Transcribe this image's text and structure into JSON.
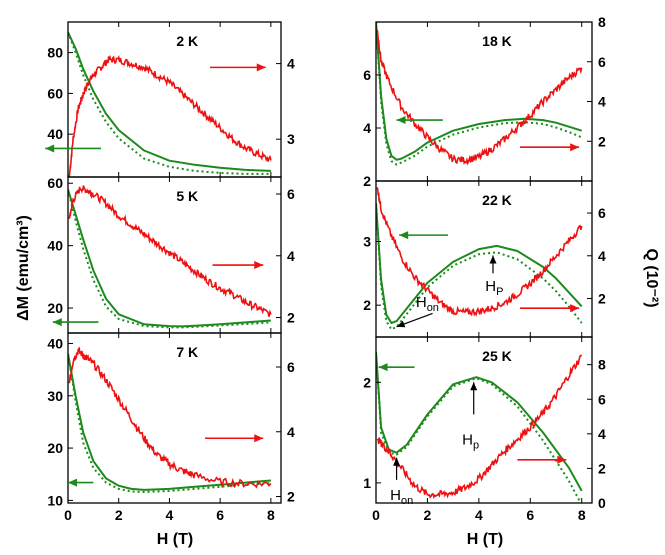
{
  "figure": {
    "y_left_label": "ΔM (emu/cm³)",
    "y_right_label": "Q (10⁻²)",
    "x_label": "H (T)"
  },
  "colors": {
    "green": "#1c8a1c",
    "red": "#ee1111"
  },
  "chart_data": [
    {
      "type": "line",
      "title": "2 K",
      "xlim": [
        0,
        8.4
      ],
      "xticks": [
        0,
        2,
        4,
        6,
        8
      ],
      "show_xticks": false,
      "left_ylim": [
        19,
        95
      ],
      "left_yticks": [
        40,
        60,
        80
      ],
      "right_ylim": [
        2.5,
        4.55
      ],
      "right_yticks": [
        3,
        4
      ],
      "series": [
        {
          "axis": "left",
          "style": "solid",
          "x": [
            0,
            0.3,
            0.6,
            1,
            1.5,
            2,
            3,
            4,
            5,
            6,
            7,
            8
          ],
          "values": [
            90,
            82,
            72,
            61,
            50,
            42,
            32,
            27,
            25,
            23.5,
            22.5,
            22
          ]
        },
        {
          "axis": "left",
          "style": "dotted",
          "x": [
            0,
            0.3,
            0.6,
            1,
            1.5,
            2,
            3,
            4,
            5,
            6,
            7,
            8
          ],
          "values": [
            90,
            80,
            69,
            57,
            46,
            38,
            28,
            24,
            22,
            21,
            20.5,
            20.5
          ]
        },
        {
          "axis": "right",
          "style": "solid",
          "x": [
            0.05,
            0.2,
            0.4,
            0.6,
            0.8,
            1,
            1.3,
            1.6,
            2,
            2.5,
            3,
            3.5,
            4,
            4.5,
            5,
            5.5,
            6,
            6.5,
            7,
            7.5,
            8
          ],
          "values": [
            2.5,
            3.0,
            3.4,
            3.6,
            3.75,
            3.85,
            3.95,
            4.05,
            4.05,
            4.0,
            3.95,
            3.85,
            3.75,
            3.6,
            3.45,
            3.3,
            3.15,
            3.0,
            2.88,
            2.8,
            2.72
          ]
        }
      ],
      "arrows": [
        {
          "axis": "left",
          "x": 1.3,
          "y": 33,
          "dir": "left",
          "len": 2.2,
          "color": "green"
        },
        {
          "axis": "right",
          "x": 5.6,
          "y": 3.95,
          "dir": "right",
          "len": 2.2,
          "color": "red"
        }
      ]
    },
    {
      "type": "line",
      "title": "5 K",
      "xlim": [
        0,
        8.4
      ],
      "xticks": [
        0,
        2,
        4,
        6,
        8
      ],
      "show_xticks": false,
      "left_ylim": [
        12,
        62
      ],
      "left_yticks": [
        20,
        40,
        60
      ],
      "right_ylim": [
        1.5,
        6.55
      ],
      "right_yticks": [
        2,
        4,
        6
      ],
      "series": [
        {
          "axis": "left",
          "style": "solid",
          "x": [
            0,
            0.3,
            0.6,
            1,
            1.5,
            2,
            3,
            4,
            4.5,
            5,
            6,
            7,
            8
          ],
          "values": [
            58,
            50,
            42,
            32,
            23,
            18,
            14.8,
            14.2,
            14.1,
            14.3,
            14.8,
            15.4,
            16
          ]
        },
        {
          "axis": "left",
          "style": "dotted",
          "x": [
            0,
            0.3,
            0.6,
            1,
            1.5,
            2,
            3,
            4,
            4.5,
            5,
            6,
            7,
            8
          ],
          "values": [
            58,
            48,
            39,
            29,
            20.5,
            16.5,
            14.2,
            13.8,
            13.8,
            14.0,
            14.4,
            14.9,
            15.4
          ]
        },
        {
          "axis": "right",
          "style": "solid",
          "x": [
            0.05,
            0.2,
            0.5,
            0.8,
            1,
            1.5,
            2,
            2.5,
            3,
            3.5,
            4,
            4.5,
            5,
            5.5,
            6,
            6.5,
            7,
            7.5,
            8
          ],
          "values": [
            5.2,
            5.8,
            6.2,
            6.1,
            6.0,
            5.7,
            5.3,
            5.0,
            4.7,
            4.4,
            4.1,
            3.8,
            3.5,
            3.2,
            2.95,
            2.75,
            2.5,
            2.3,
            2.1
          ]
        }
      ],
      "arrows": [
        {
          "axis": "left",
          "x": 1.2,
          "y": 15.5,
          "dir": "left",
          "len": 1.8,
          "color": "green"
        },
        {
          "axis": "right",
          "x": 5.7,
          "y": 3.7,
          "dir": "right",
          "len": 2.0,
          "color": "red"
        }
      ]
    },
    {
      "type": "line",
      "title": "7 K",
      "xlim": [
        0,
        8.4
      ],
      "xticks": [
        0,
        2,
        4,
        6,
        8
      ],
      "show_xticks": true,
      "left_ylim": [
        9.5,
        42
      ],
      "left_yticks": [
        10,
        20,
        30,
        40
      ],
      "right_ylim": [
        1.8,
        7.05
      ],
      "right_yticks": [
        2,
        4,
        6
      ],
      "series": [
        {
          "axis": "left",
          "style": "solid",
          "x": [
            0,
            0.3,
            0.6,
            1,
            1.5,
            2,
            2.5,
            3,
            4,
            5,
            6,
            7,
            8
          ],
          "values": [
            38,
            30,
            23,
            17.5,
            14.2,
            12.8,
            12.2,
            12.0,
            12.2,
            12.6,
            13.0,
            13.4,
            13.8
          ]
        },
        {
          "axis": "left",
          "style": "dotted",
          "x": [
            0,
            0.3,
            0.6,
            1,
            1.5,
            2,
            2.5,
            3,
            4,
            5,
            6,
            7,
            8
          ],
          "values": [
            38,
            29,
            21,
            16.2,
            13.4,
            12.2,
            11.7,
            11.6,
            11.8,
            12.2,
            12.6,
            13.0,
            13.3
          ]
        },
        {
          "axis": "right",
          "style": "solid",
          "x": [
            0.05,
            0.2,
            0.4,
            0.7,
            1,
            1.5,
            2,
            2.5,
            3,
            3.5,
            4,
            4.5,
            5,
            6,
            7,
            8
          ],
          "values": [
            5.5,
            6.2,
            6.5,
            6.3,
            6.1,
            5.6,
            5.0,
            4.4,
            3.8,
            3.3,
            3.0,
            2.8,
            2.65,
            2.45,
            2.4,
            2.4
          ]
        }
      ],
      "arrows": [
        {
          "axis": "left",
          "x": 1.0,
          "y": 13.4,
          "dir": "left",
          "len": 1.0,
          "color": "green"
        },
        {
          "axis": "right",
          "x": 5.4,
          "y": 3.8,
          "dir": "right",
          "len": 2.3,
          "color": "red"
        }
      ]
    },
    {
      "type": "line",
      "title": "18 K",
      "xlim": [
        0,
        8.4
      ],
      "xticks": [
        0,
        2,
        4,
        6,
        8
      ],
      "show_xticks": false,
      "left_ylim": [
        2,
        8
      ],
      "left_yticks": [
        2,
        4,
        6
      ],
      "right_ylim": [
        0,
        8
      ],
      "right_yticks": [
        2,
        4,
        6,
        8
      ],
      "series": [
        {
          "axis": "left",
          "style": "solid",
          "x": [
            0,
            0.2,
            0.4,
            0.6,
            0.8,
            1,
            1.5,
            2,
            3,
            4,
            5,
            5.8,
            6.5,
            7,
            7.5,
            8
          ],
          "values": [
            8,
            5.2,
            3.6,
            2.95,
            2.8,
            2.85,
            3.1,
            3.45,
            3.9,
            4.15,
            4.3,
            4.35,
            4.3,
            4.2,
            4.05,
            3.9
          ]
        },
        {
          "axis": "left",
          "style": "dotted",
          "x": [
            0,
            0.2,
            0.4,
            0.6,
            0.8,
            1,
            1.5,
            2,
            3,
            4,
            5,
            5.8,
            6.5,
            7,
            7.5,
            8
          ],
          "values": [
            8,
            5.0,
            3.4,
            2.75,
            2.62,
            2.7,
            2.95,
            3.3,
            3.75,
            4.02,
            4.18,
            4.22,
            4.15,
            4.02,
            3.85,
            3.65
          ]
        },
        {
          "axis": "right",
          "style": "solid",
          "x": [
            0.05,
            0.2,
            0.5,
            1,
            1.5,
            2,
            2.5,
            3,
            3.5,
            4,
            4.5,
            5,
            5.5,
            6,
            6.5,
            7,
            7.5,
            8
          ],
          "values": [
            7.6,
            6.0,
            5.0,
            3.7,
            2.9,
            2.2,
            1.6,
            1.1,
            1.05,
            1.2,
            1.6,
            2.1,
            2.7,
            3.3,
            4.0,
            4.6,
            5.2,
            5.7
          ]
        }
      ],
      "arrows": [
        {
          "axis": "left",
          "x": 2.6,
          "y": 4.3,
          "dir": "left",
          "len": 1.8,
          "color": "green"
        },
        {
          "axis": "right",
          "x": 5.6,
          "y": 1.7,
          "dir": "right",
          "len": 2.3,
          "color": "red"
        }
      ]
    },
    {
      "type": "line",
      "title": "22 K",
      "xlim": [
        0,
        8.4
      ],
      "xticks": [
        0,
        2,
        4,
        6,
        8
      ],
      "show_xticks": false,
      "left_ylim": [
        1.5,
        3.95
      ],
      "left_yticks": [
        2,
        3
      ],
      "right_ylim": [
        0.2,
        7.5
      ],
      "right_yticks": [
        2,
        4,
        6
      ],
      "series": [
        {
          "axis": "left",
          "style": "solid",
          "x": [
            0,
            0.2,
            0.4,
            0.6,
            0.8,
            1,
            1.5,
            2,
            3,
            4,
            4.7,
            5.5,
            6.5,
            7,
            7.5,
            8
          ],
          "values": [
            3.6,
            2.4,
            1.85,
            1.72,
            1.75,
            1.85,
            2.1,
            2.35,
            2.68,
            2.88,
            2.93,
            2.85,
            2.6,
            2.42,
            2.2,
            1.98
          ]
        },
        {
          "axis": "left",
          "style": "dotted",
          "x": [
            0,
            0.2,
            0.4,
            0.6,
            0.8,
            1,
            1.5,
            2,
            3,
            4,
            4.7,
            5.5,
            6.5,
            7,
            7.5,
            8
          ],
          "values": [
            3.6,
            2.3,
            1.75,
            1.62,
            1.66,
            1.76,
            2.02,
            2.28,
            2.62,
            2.8,
            2.83,
            2.72,
            2.42,
            2.22,
            1.98,
            1.72
          ]
        },
        {
          "axis": "right",
          "style": "solid",
          "x": [
            0.05,
            0.2,
            0.5,
            1,
            1.5,
            2,
            2.5,
            3,
            3.5,
            4,
            4.5,
            5,
            5.5,
            6,
            6.5,
            7,
            7.5,
            8
          ],
          "values": [
            7.2,
            6.2,
            5.2,
            3.9,
            3.0,
            2.4,
            1.8,
            1.4,
            1.35,
            1.4,
            1.55,
            1.8,
            2.2,
            2.7,
            3.3,
            4.0,
            4.7,
            5.4
          ]
        }
      ],
      "arrows": [
        {
          "axis": "left",
          "x": 2.8,
          "y": 3.1,
          "dir": "left",
          "len": 1.9,
          "color": "green"
        },
        {
          "axis": "right",
          "x": 5.6,
          "y": 1.55,
          "dir": "right",
          "len": 2.3,
          "color": "red"
        }
      ],
      "annotations": [
        {
          "label": "H",
          "sub": "P",
          "tx": 4.25,
          "ty": 2.22,
          "ax1": 4.55,
          "ay1": 2.5,
          "ax2": 4.55,
          "ay2": 2.78
        },
        {
          "label": "H",
          "sub": "on",
          "tx": 1.55,
          "ty": 1.97,
          "ax1": 2.2,
          "ay1": 1.87,
          "ax2": 0.8,
          "ay2": 1.66
        }
      ]
    },
    {
      "type": "line",
      "title": "25 K",
      "xlim": [
        0,
        8.4
      ],
      "xticks": [
        0,
        2,
        4,
        6,
        8
      ],
      "show_xticks": true,
      "left_ylim": [
        0.8,
        2.45
      ],
      "left_yticks": [
        1,
        2
      ],
      "right_ylim": [
        0,
        9.6
      ],
      "right_yticks": [
        0,
        2,
        4,
        6,
        8
      ],
      "series": [
        {
          "axis": "left",
          "style": "solid",
          "x": [
            0,
            0.2,
            0.5,
            0.8,
            1.2,
            2,
            3,
            3.9,
            4.5,
            5.5,
            6.5,
            7.5,
            8
          ],
          "values": [
            2.3,
            1.55,
            1.33,
            1.3,
            1.38,
            1.68,
            1.98,
            2.05,
            2.0,
            1.8,
            1.5,
            1.15,
            0.92
          ]
        },
        {
          "axis": "left",
          "style": "dotted",
          "x": [
            0,
            0.2,
            0.5,
            0.8,
            1.2,
            2,
            3,
            3.9,
            4.5,
            5.5,
            6.5,
            7.5,
            8
          ],
          "values": [
            2.3,
            1.5,
            1.3,
            1.28,
            1.36,
            1.66,
            1.96,
            2.04,
            1.98,
            1.76,
            1.42,
            1.02,
            0.78
          ]
        },
        {
          "axis": "right",
          "style": "solid",
          "x": [
            0.05,
            0.3,
            0.6,
            1,
            1.5,
            2,
            2.5,
            3,
            3.5,
            4,
            4.5,
            5,
            5.5,
            6,
            6.5,
            7,
            7.5,
            8
          ],
          "values": [
            3.7,
            3.3,
            2.8,
            2.0,
            1.0,
            0.5,
            0.5,
            0.6,
            0.9,
            1.4,
            2.2,
            3.0,
            3.7,
            4.4,
            5.2,
            6.2,
            7.4,
            8.5
          ]
        }
      ],
      "arrows": [
        {
          "axis": "left",
          "x": 1.5,
          "y": 2.15,
          "dir": "left",
          "len": 1.4,
          "color": "green"
        },
        {
          "axis": "right",
          "x": 5.5,
          "y": 2.5,
          "dir": "right",
          "len": 1.9,
          "color": "red"
        }
      ],
      "annotations": [
        {
          "label": "H",
          "sub": "p",
          "tx": 3.35,
          "ty": 1.38,
          "ax1": 3.8,
          "ay1": 1.68,
          "ax2": 3.8,
          "ay2": 2.0
        },
        {
          "label": "H",
          "sub": "on",
          "tx": 0.55,
          "ty": 0.83,
          "ax1": 0.8,
          "ay1": 1.03,
          "ax2": 0.8,
          "ay2": 1.25
        }
      ]
    }
  ]
}
